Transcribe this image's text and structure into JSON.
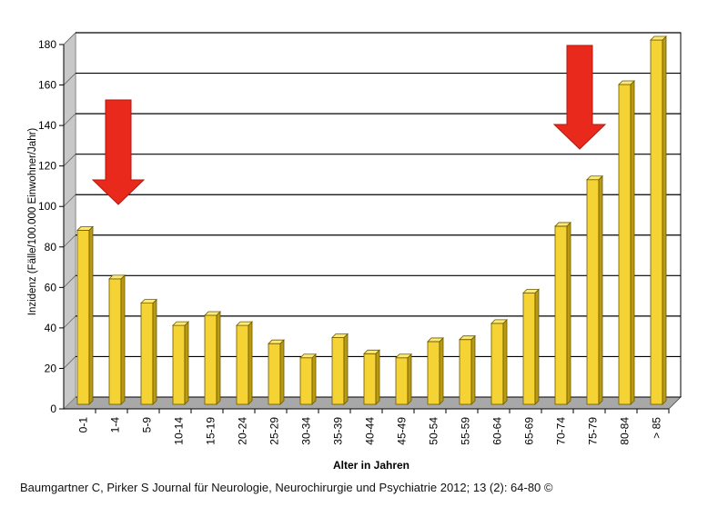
{
  "chart_data": {
    "type": "bar",
    "title": "",
    "xlabel": "Alter in Jahren",
    "ylabel": "Inzidenz (Fälle/100.000 Einwohner/Jahr)",
    "ylim": [
      0,
      180
    ],
    "yticks": [
      0,
      20,
      40,
      60,
      80,
      100,
      120,
      140,
      160,
      180
    ],
    "grid": true,
    "categories": [
      "0-1",
      "1-4",
      "5-9",
      "10-14",
      "15-19",
      "20-24",
      "25-29",
      "30-34",
      "35-39",
      "40-44",
      "45-49",
      "50-54",
      "55-59",
      "60-64",
      "65-69",
      "70-74",
      "75-79",
      "80-84",
      "> 85"
    ],
    "values": [
      86,
      62,
      50,
      39,
      44,
      39,
      30,
      23,
      33,
      25,
      23,
      31,
      32,
      40,
      55,
      88,
      111,
      158,
      180
    ],
    "bar_color": "#f5d334",
    "annotations": [
      {
        "type": "arrow-down",
        "color": "#e8291c",
        "near_category": "0-1"
      },
      {
        "type": "arrow-down",
        "color": "#e8291c",
        "near_category": "70-74"
      }
    ]
  },
  "citation": "Baumgartner C, Pirker S Journal für Neurologie, Neurochirurgie und Psychiatrie 2012; 13 (2): 64-80 ©"
}
